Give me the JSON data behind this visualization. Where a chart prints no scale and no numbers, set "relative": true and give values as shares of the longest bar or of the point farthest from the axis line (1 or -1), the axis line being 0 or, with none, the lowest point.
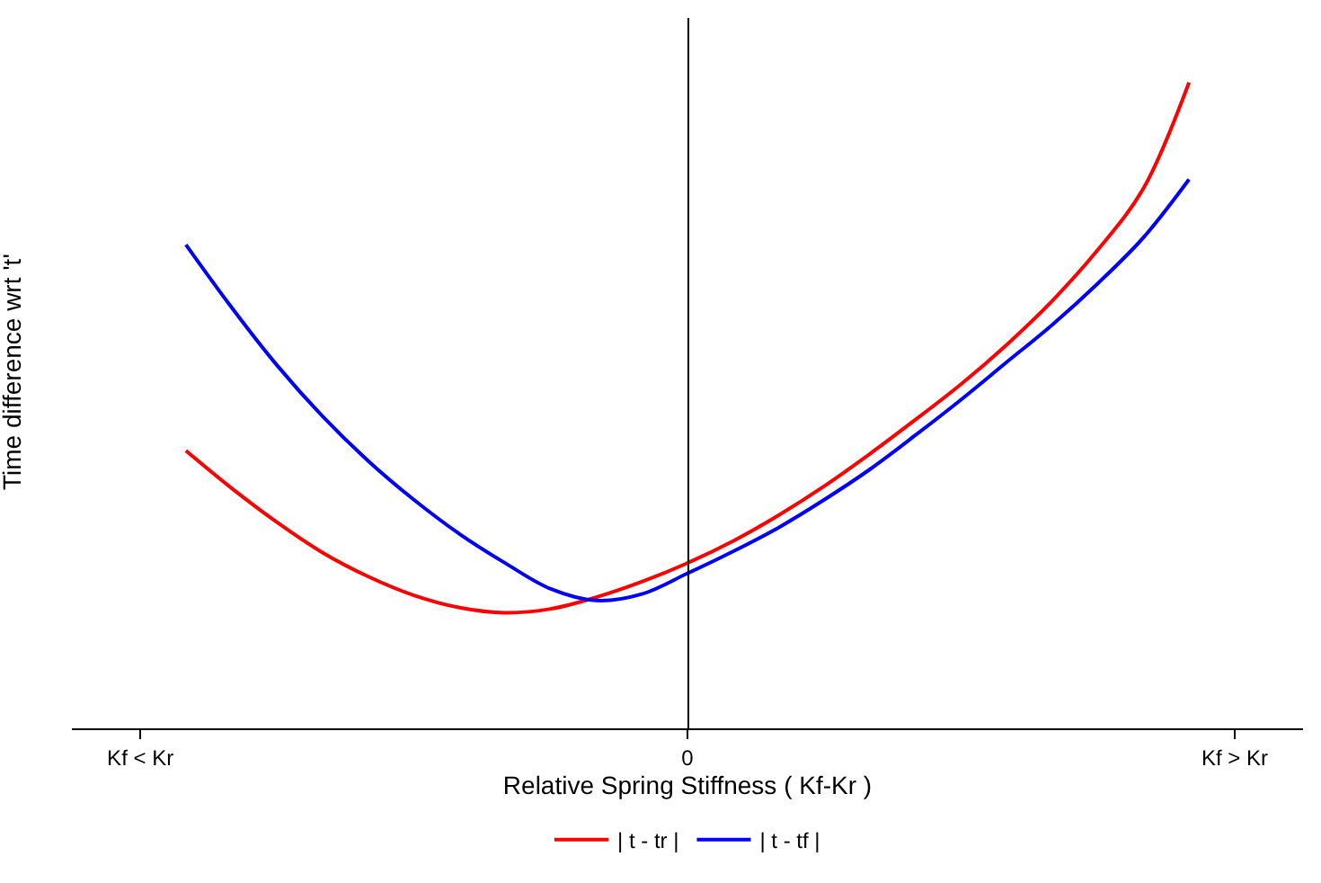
{
  "chart_data": {
    "type": "line",
    "relative": true,
    "xlabel": "Relative Spring Stiffness ( Kf-Kr )",
    "ylabel": "Time difference wrt 't'",
    "categories": [
      "Kf < Kr",
      null,
      null,
      null,
      null,
      null,
      null,
      null,
      null,
      null,
      null,
      null,
      "0",
      null,
      null,
      null,
      null,
      null,
      null,
      null,
      null,
      null,
      null,
      null,
      "Kf > Kr"
    ],
    "legend": "bottom",
    "marker": "none",
    "line_style": "solid",
    "series": [
      {
        "name": "| t - tr |",
        "color": "#ff0000",
        "values": [
          null,
          0.43,
          0.372,
          0.319,
          0.272,
          0.235,
          0.206,
          0.187,
          0.179,
          0.185,
          0.203,
          0.227,
          0.256,
          0.29,
          0.33,
          0.375,
          0.425,
          0.478,
          0.533,
          0.594,
          0.662,
          0.741,
          0.836,
          1,
          null
        ]
      },
      {
        "name": "| t - tf |",
        "color": "#0000ff",
        "values": [
          null,
          0.749,
          0.652,
          0.562,
          0.483,
          0.414,
          0.354,
          0.301,
          0.256,
          0.216,
          0.198,
          0.208,
          0.24,
          0.274,
          0.311,
          0.354,
          0.401,
          0.454,
          0.509,
          0.567,
          0.625,
          0.689,
          0.76,
          0.85,
          null
        ]
      }
    ]
  }
}
